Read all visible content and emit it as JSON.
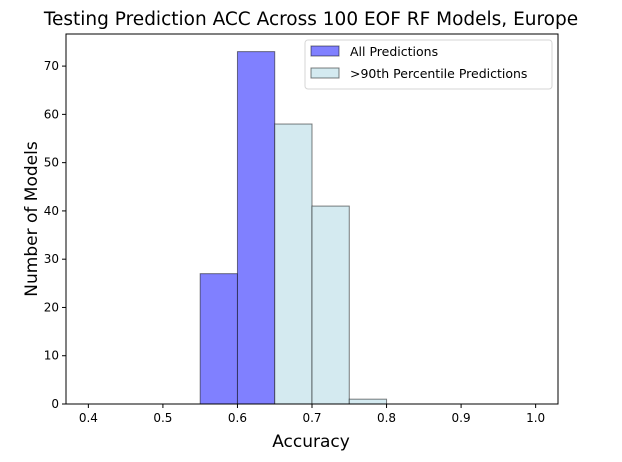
{
  "chart_data": {
    "type": "bar",
    "title": "Testing Prediction ACC Across 100 EOF RF Models, Europe",
    "xlabel": "Accuracy",
    "ylabel": "Number of Models",
    "xlim": [
      0.37,
      1.03
    ],
    "ylim": [
      0,
      76.65
    ],
    "xticks": [
      0.4,
      0.5,
      0.6,
      0.7,
      0.8,
      0.9,
      1.0
    ],
    "xtick_labels": [
      "0.4",
      "0.5",
      "0.6",
      "0.7",
      "0.8",
      "0.9",
      "1.0"
    ],
    "yticks": [
      0,
      10,
      20,
      30,
      40,
      50,
      60,
      70
    ],
    "ytick_labels": [
      "0",
      "10",
      "20",
      "30",
      "40",
      "50",
      "60",
      "70"
    ],
    "bin_edges": [
      0.4,
      0.45,
      0.5,
      0.55,
      0.6,
      0.65,
      0.7,
      0.75,
      0.8,
      0.85,
      0.9,
      0.95,
      1.0
    ],
    "series": [
      {
        "name": "All Predictions",
        "color": "#8080ff",
        "values": [
          0,
          0,
          0,
          27,
          73,
          0,
          0,
          0,
          0,
          0,
          0,
          0
        ]
      },
      {
        "name": ">90th Percentile Predictions",
        "color": "#d4eaf0",
        "values": [
          0,
          0,
          0,
          0,
          0,
          58,
          41,
          1,
          0,
          0,
          0,
          0
        ]
      }
    ],
    "legend_position": "top-right",
    "grid": false
  }
}
